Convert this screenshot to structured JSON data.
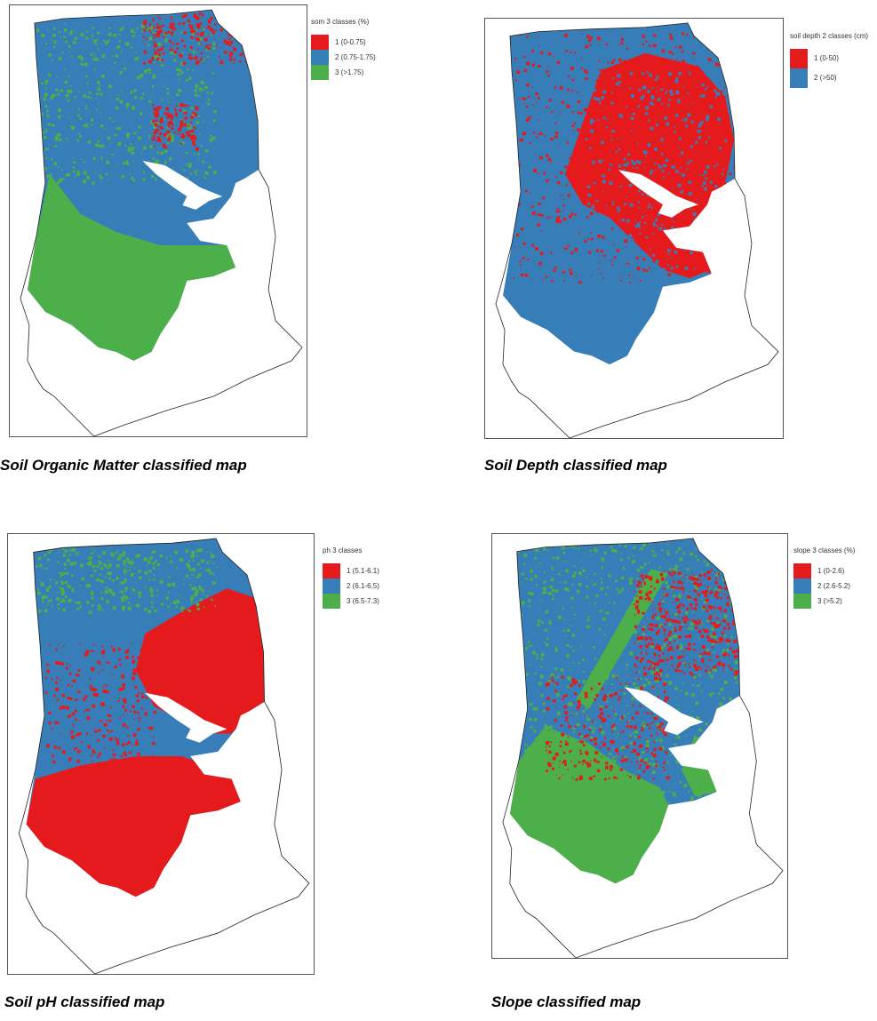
{
  "colors": {
    "class1": "#e41a1c",
    "class2": "#377eb8",
    "class3": "#4daf4a"
  },
  "maps": [
    {
      "caption": "Soil Organic Matter classified map",
      "legend_title": "som 3 classes (%)",
      "classes": [
        {
          "label": "1 (0-0.75)",
          "color": "#e41a1c"
        },
        {
          "label": "2 (0.75-1.75)",
          "color": "#377eb8"
        },
        {
          "label": "3 (>1.75)",
          "color": "#4daf4a"
        }
      ]
    },
    {
      "caption": "Soil Depth classified map",
      "legend_title": "soil depth 2 classes (cm)",
      "classes": [
        {
          "label": "1 (0-50)",
          "color": "#e41a1c"
        },
        {
          "label": "2 (>50)",
          "color": "#377eb8"
        }
      ]
    },
    {
      "caption": "Soil pH classified map",
      "legend_title": "ph 3 classes",
      "classes": [
        {
          "label": "1 (5.1-6.1)",
          "color": "#e41a1c"
        },
        {
          "label": "2 (6.1-6.5)",
          "color": "#377eb8"
        },
        {
          "label": "3 (6.5-7.3)",
          "color": "#4daf4a"
        }
      ]
    },
    {
      "caption": "Slope classified map",
      "legend_title": "slope 3 classes (%)",
      "classes": [
        {
          "label": "1 (0-2.6)",
          "color": "#e41a1c"
        },
        {
          "label": "2 (2.6-5.2)",
          "color": "#377eb8"
        },
        {
          "label": "3 (>5.2)",
          "color": "#4daf4a"
        }
      ]
    }
  ]
}
